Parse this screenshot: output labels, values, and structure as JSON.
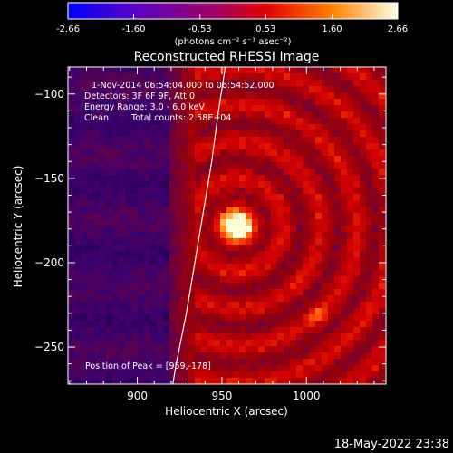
{
  "chart_data": {
    "type": "heatmap",
    "title": "Reconstructed RHESSI Image",
    "xlabel": "Heliocentric X (arcsec)",
    "ylabel": "Heliocentric Y (arcsec)",
    "xlim": [
      859,
      1047
    ],
    "ylim": [
      -272,
      -84
    ],
    "x_ticks": [
      900,
      950,
      1000
    ],
    "y_ticks": [
      -100,
      -150,
      -200,
      -250
    ],
    "colorbar": {
      "label": "(photons cm⁻² s⁻¹ asec⁻²)",
      "ticks": [
        "-2.66",
        "-1.60",
        "-0.53",
        "0.53",
        "1.60",
        "2.66"
      ],
      "range": [
        -2.66,
        2.66
      ]
    },
    "annotations": {
      "time": "1-Nov-2014 06:54:04.000 to 06:54:52.000",
      "detectors": "Detectors: 3F 6F 9F, Att 0",
      "energy": "Energy Range: 3.0 - 6.0 keV",
      "method": "Clean",
      "counts": "Total counts: 2.58E+04",
      "peak": "Position of Peak = [959,-178]"
    },
    "peak": {
      "x": 959,
      "y": -178
    },
    "limb": [
      [
        952,
        -84
      ],
      [
        948,
        -110
      ],
      [
        944,
        -140
      ],
      [
        939,
        -170
      ],
      [
        934,
        -200
      ],
      [
        929,
        -230
      ],
      [
        923,
        -260
      ],
      [
        921,
        -272
      ]
    ],
    "footer": "18-May-2022 23:38"
  }
}
